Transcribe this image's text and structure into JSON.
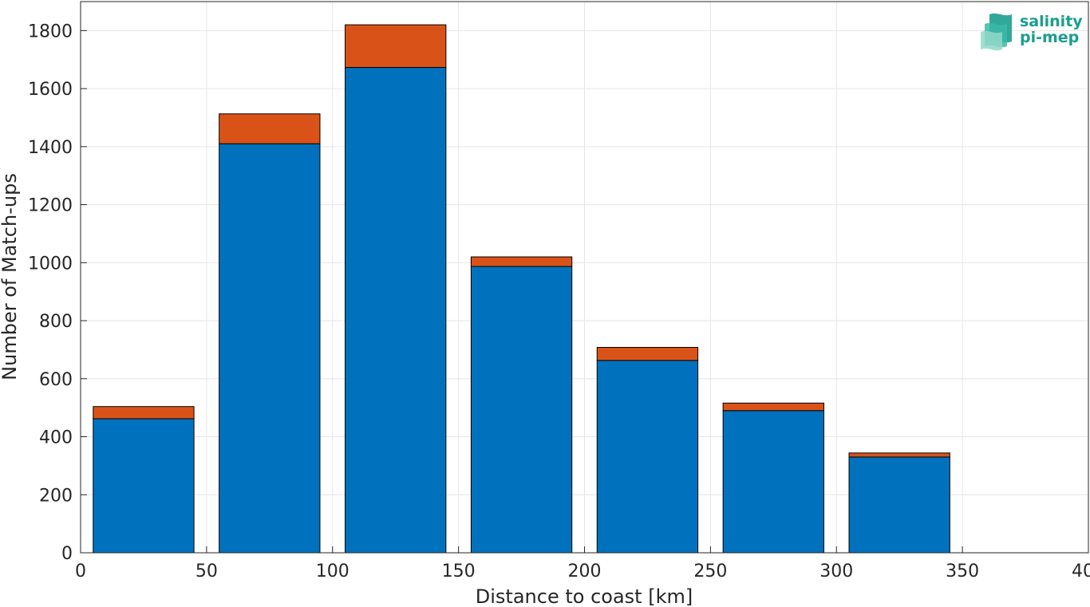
{
  "chart_data": {
    "type": "bar",
    "stacked": true,
    "xlabel": "Distance to coast [km]",
    "ylabel": "Number of Match-ups",
    "xlim": [
      0,
      400
    ],
    "ylim": [
      0,
      1900
    ],
    "xticks": [
      0,
      50,
      100,
      150,
      200,
      250,
      300,
      350,
      400
    ],
    "yticks": [
      0,
      200,
      400,
      600,
      800,
      1000,
      1200,
      1400,
      1600,
      1800
    ],
    "grid": true,
    "bin_edges": [
      [
        5,
        45
      ],
      [
        55,
        95
      ],
      [
        105,
        145
      ],
      [
        155,
        195
      ],
      [
        205,
        245
      ],
      [
        255,
        295
      ],
      [
        305,
        345
      ]
    ],
    "x": [
      25,
      75,
      125,
      175,
      225,
      275,
      325
    ],
    "series": [
      {
        "color": "#0072BD",
        "values": [
          462,
          1410,
          1673,
          987,
          663,
          490,
          330
        ]
      },
      {
        "color": "#D95319",
        "values": [
          42,
          103,
          147,
          33,
          45,
          26,
          14
        ]
      }
    ]
  },
  "logo": {
    "line1": "salinity",
    "line2": "pi-mep",
    "color": "#1a9e8f"
  }
}
